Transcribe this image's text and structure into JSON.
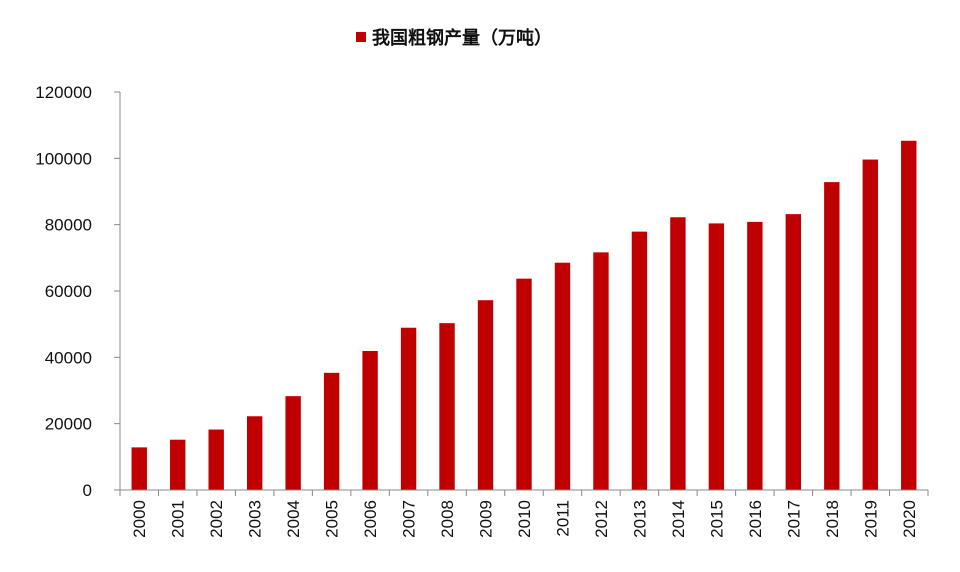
{
  "chart_data": {
    "type": "bar",
    "title": "",
    "xlabel": "",
    "ylabel": "",
    "ylim": [
      0,
      120000
    ],
    "yticks": [
      0,
      20000,
      40000,
      60000,
      80000,
      100000,
      120000
    ],
    "grid": false,
    "legend_position": "top-center",
    "categories": [
      "2000",
      "2001",
      "2002",
      "2003",
      "2004",
      "2005",
      "2006",
      "2007",
      "2008",
      "2009",
      "2010",
      "2011",
      "2012",
      "2013",
      "2014",
      "2015",
      "2016",
      "2017",
      "2018",
      "2019",
      "2020"
    ],
    "series": [
      {
        "name": "我国粗钢产量（万吨）",
        "color": "#c00000",
        "values": [
          12850,
          15163,
          18225,
          22234,
          28291,
          35324,
          41915,
          48929,
          50305,
          57218,
          63723,
          68528,
          71654,
          77904,
          82231,
          80383,
          80837,
          83173,
          92826,
          99634,
          105300
        ]
      }
    ]
  }
}
